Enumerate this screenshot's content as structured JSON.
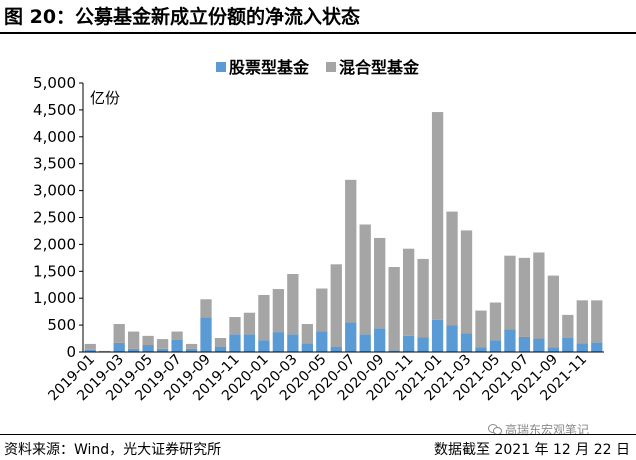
{
  "title": "图 20：公募基金新成立份额的净流入状态",
  "footer": {
    "source": "资料来源：Wind，光大证券研究所",
    "date": "数据截至 2021 年 12 月 22 日"
  },
  "watermark": "高瑞东宏观笔记",
  "chart_data": {
    "type": "bar",
    "stacked": true,
    "unit_label": "亿份",
    "ylim": [
      0,
      5000
    ],
    "yticks": [
      0,
      500,
      1000,
      1500,
      2000,
      2500,
      3000,
      3500,
      4000,
      4500,
      5000
    ],
    "ytick_labels": [
      "0",
      "500",
      "1,000",
      "1,500",
      "2,000",
      "2,500",
      "3,000",
      "3,500",
      "4,000",
      "4,500",
      "5,000"
    ],
    "legend_position": "top-center",
    "categories": [
      "2019-01",
      "2019-02",
      "2019-03",
      "2019-04",
      "2019-05",
      "2019-06",
      "2019-07",
      "2019-08",
      "2019-09",
      "2019-10",
      "2019-11",
      "2019-12",
      "2020-01",
      "2020-02",
      "2020-03",
      "2020-04",
      "2020-05",
      "2020-06",
      "2020-07",
      "2020-08",
      "2020-09",
      "2020-10",
      "2020-11",
      "2020-12",
      "2021-01",
      "2021-02",
      "2021-03",
      "2021-04",
      "2021-05",
      "2021-06",
      "2021-07",
      "2021-08",
      "2021-09",
      "2021-10",
      "2021-11",
      "2021-12"
    ],
    "xtick_labels": [
      "2019-01",
      "2019-03",
      "2019-05",
      "2019-07",
      "2019-09",
      "2019-11",
      "2020-01",
      "2020-03",
      "2020-05",
      "2020-07",
      "2020-09",
      "2020-11",
      "2021-01",
      "2021-03",
      "2021-05",
      "2021-07",
      "2021-09",
      "2021-11"
    ],
    "series": [
      {
        "name": "股票型基金",
        "color": "#5b9bd5",
        "values": [
          40,
          10,
          170,
          60,
          130,
          60,
          230,
          60,
          640,
          100,
          330,
          330,
          220,
          370,
          330,
          160,
          380,
          100,
          550,
          330,
          440,
          30,
          300,
          270,
          600,
          500,
          350,
          90,
          220,
          420,
          280,
          250,
          90,
          260,
          160,
          180
        ]
      },
      {
        "name": "混合型基金",
        "color": "#a5a5a5",
        "values": [
          110,
          10,
          350,
          320,
          170,
          180,
          150,
          90,
          340,
          160,
          320,
          400,
          840,
          800,
          1120,
          360,
          800,
          1530,
          2650,
          2040,
          1680,
          1550,
          1620,
          1460,
          3860,
          2110,
          1910,
          680,
          700,
          1370,
          1470,
          1600,
          1330,
          430,
          800,
          780
        ]
      }
    ]
  }
}
